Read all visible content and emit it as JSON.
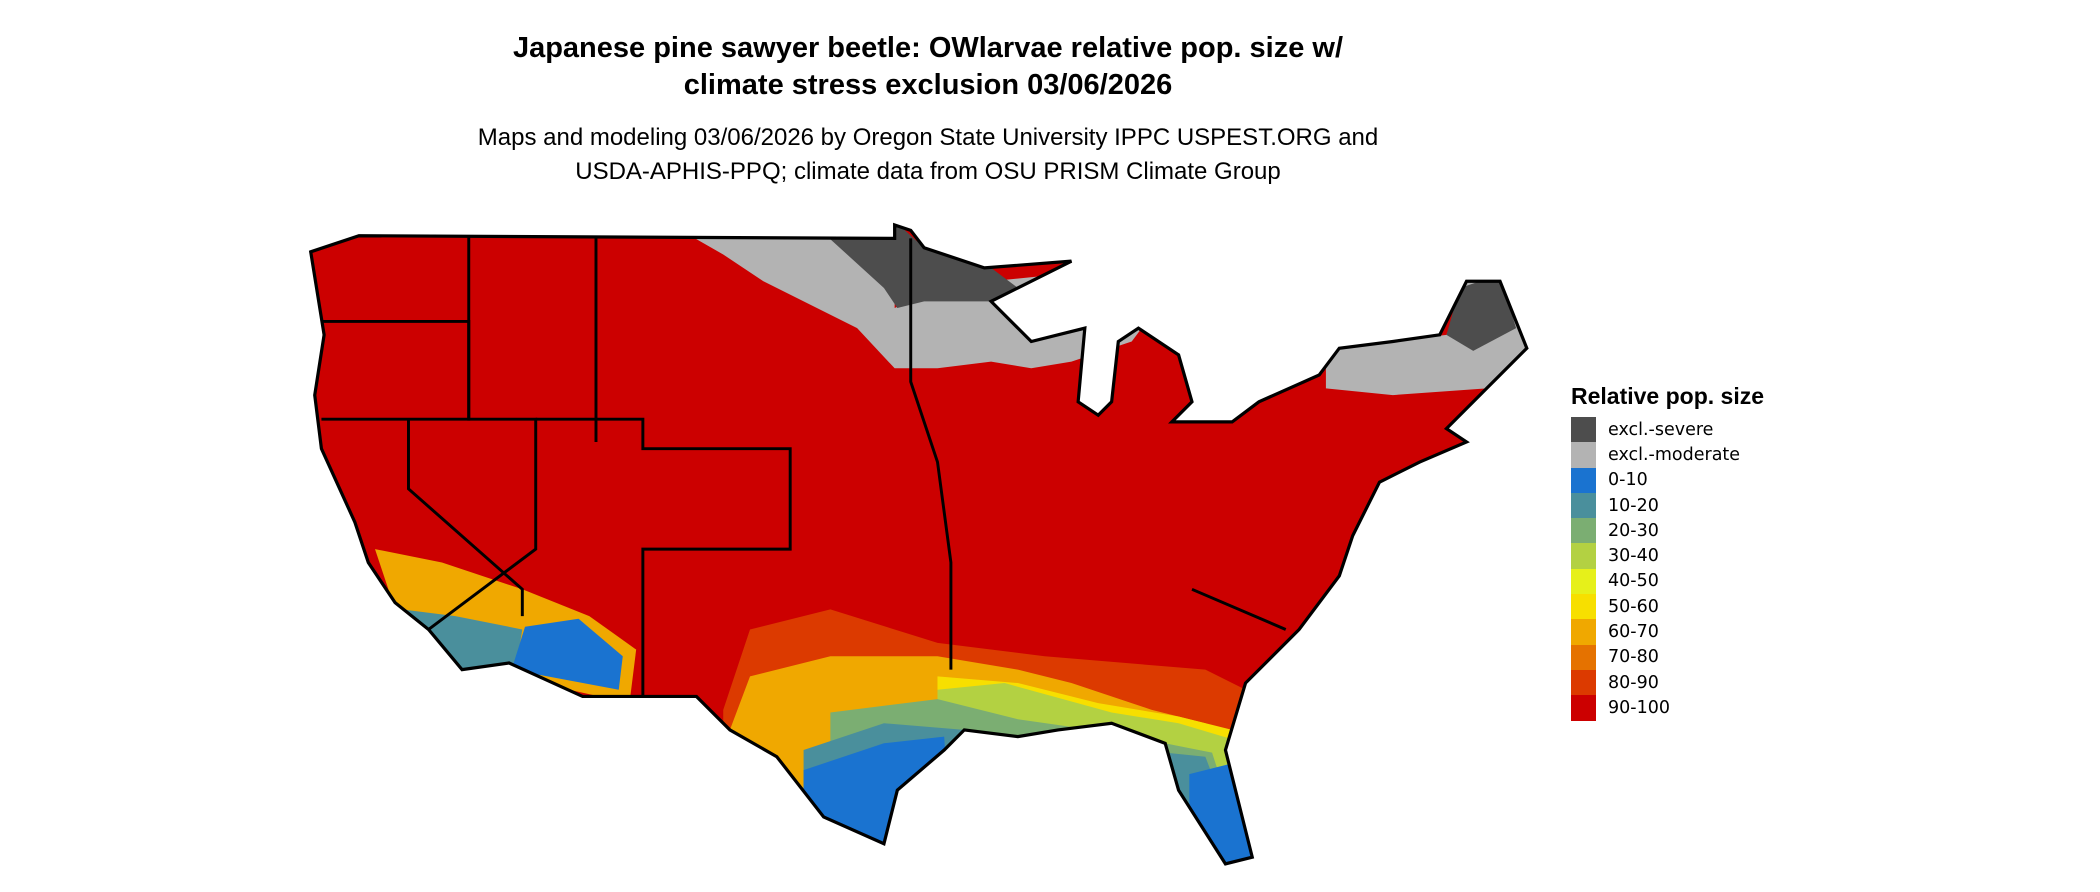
{
  "title": {
    "line1": "Japanese pine sawyer beetle: OWlarvae relative pop. size w/",
    "line2": "climate stress exclusion 03/06/2026"
  },
  "subtitle": {
    "line1": "Maps and modeling 03/06/2026 by Oregon State University IPPC USPEST.ORG and",
    "line2": "USDA-APHIS-PPQ; climate data from OSU PRISM Climate Group"
  },
  "legend": {
    "title": "Relative pop. size",
    "items": [
      {
        "label": "excl.-severe",
        "color": "#4d4d4d"
      },
      {
        "label": "excl.-moderate",
        "color": "#b3b3b3"
      },
      {
        "label": "0-10",
        "color": "#1a73d0"
      },
      {
        "label": "10-20",
        "color": "#4a8f9c"
      },
      {
        "label": "20-30",
        "color": "#7bae72"
      },
      {
        "label": "30-40",
        "color": "#b3d142"
      },
      {
        "label": "40-50",
        "color": "#e6f01a"
      },
      {
        "label": "50-60",
        "color": "#f7df00"
      },
      {
        "label": "60-70",
        "color": "#f0a800"
      },
      {
        "label": "70-80",
        "color": "#e57200"
      },
      {
        "label": "80-90",
        "color": "#dc3a00"
      },
      {
        "label": "90-100",
        "color": "#cc0000"
      }
    ]
  },
  "map": {
    "region": "Contiguous United States",
    "dominant_class": "90-100",
    "boundary_color": "#000000"
  }
}
